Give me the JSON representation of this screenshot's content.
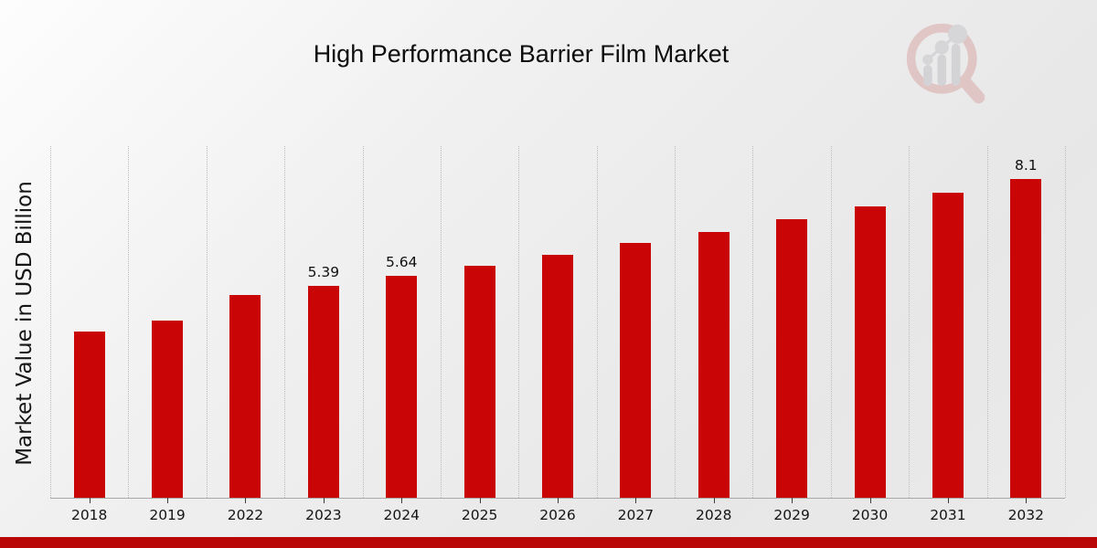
{
  "page": {
    "title": "High Performance Barrier Film Market",
    "ylabel": "Market Value in USD Billion"
  },
  "logo": {
    "name": "market-research-magnifier-logo",
    "ring_color": "#d9a8a8",
    "handle_color": "#d9a8a8",
    "bars_color": "#c2c2c7",
    "dots_color": "#c2c2c7"
  },
  "colors": {
    "bar": "#c90505",
    "ribbon": "#b90606",
    "gridline": "#bcbcbc",
    "axis_line": "#a8a8a8",
    "title_text": "#0d0d0d",
    "label_text": "#101010"
  },
  "chart_data": {
    "type": "bar",
    "title": "High Performance Barrier Film Market",
    "xlabel": "",
    "ylabel": "Market Value in USD Billion",
    "categories": [
      "2018",
      "2019",
      "2022",
      "2023",
      "2024",
      "2025",
      "2026",
      "2027",
      "2028",
      "2029",
      "2030",
      "2031",
      "2032"
    ],
    "values": [
      4.22,
      4.5,
      5.15,
      5.39,
      5.64,
      5.9,
      6.18,
      6.46,
      6.76,
      7.08,
      7.41,
      7.75,
      8.1
    ],
    "data_labels": {
      "2023": "5.39",
      "2024": "5.64",
      "2032": "8.1"
    },
    "ylim": [
      0,
      8.93
    ],
    "grid": "vertical-dotted",
    "legend": "none",
    "bar_color": "#c90505"
  }
}
